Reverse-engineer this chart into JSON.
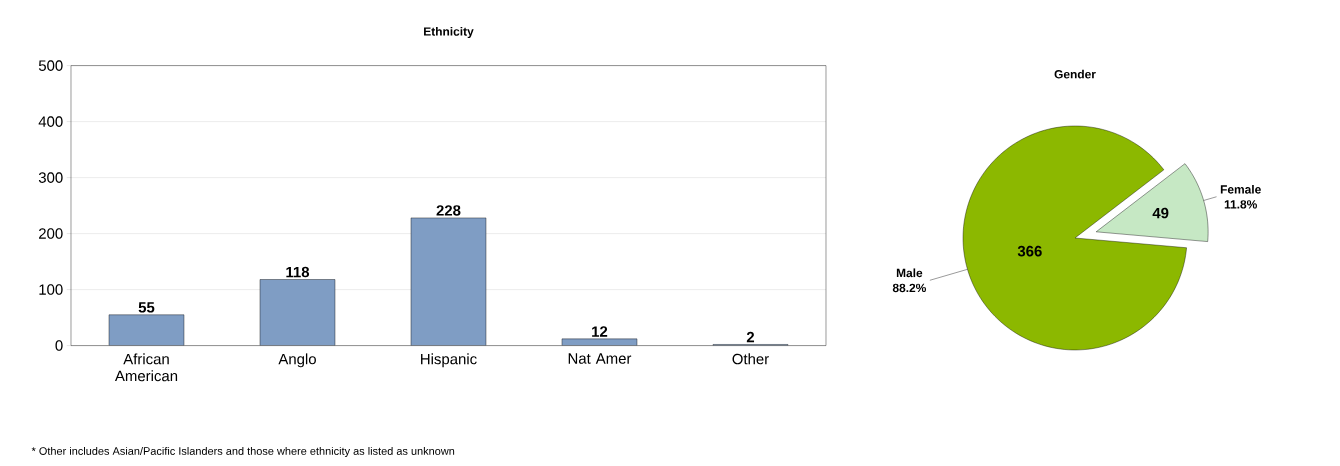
{
  "chart_data": [
    {
      "type": "bar",
      "title": "Ethnicity",
      "categories": [
        "African American",
        "Anglo",
        "Hispanic",
        "Nat Amer",
        "Other"
      ],
      "values": [
        55,
        118,
        228,
        12,
        2
      ],
      "color": "#7f9dc4",
      "ylim": [
        0,
        500
      ],
      "yticks": [
        0,
        100,
        200,
        300,
        400,
        500
      ],
      "grid": "y",
      "data_labels": true,
      "annotations": [
        "* Other includes Asian/Pacific Islanders and those where ethnicity as listed as unknown"
      ]
    },
    {
      "type": "pie",
      "title": "Gender",
      "categories": [
        "Male",
        "Female"
      ],
      "values": [
        366,
        49
      ],
      "annotations": [
        "88.2%",
        "11.8%"
      ],
      "colors": [
        "#8cb800",
        "#c6e8c4"
      ],
      "data_labels": true
    }
  ]
}
